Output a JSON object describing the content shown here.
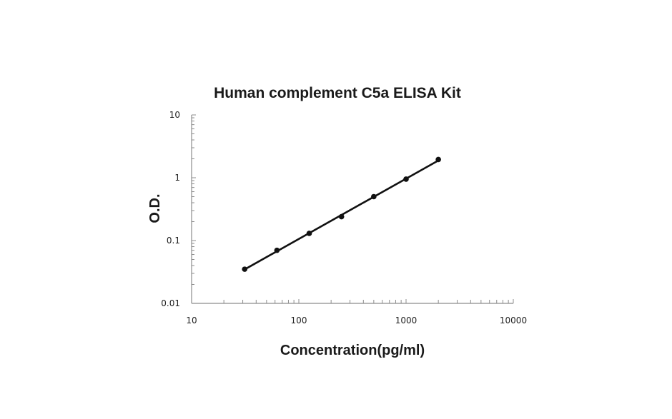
{
  "chart_data": {
    "type": "scatter",
    "title": "Human complement C5a ELISA Kit",
    "xlabel": "Concentration(pg/ml)",
    "ylabel": "O.D.",
    "x_scale": "log",
    "y_scale": "log",
    "xlim": [
      10,
      10000
    ],
    "ylim": [
      0.01,
      10
    ],
    "x_ticks": [
      10,
      100,
      1000,
      10000
    ],
    "x_tick_labels": [
      "10",
      "100",
      "1000",
      "10000"
    ],
    "y_ticks": [
      0.01,
      0.1,
      1,
      10
    ],
    "y_tick_labels": [
      "0.01",
      "0.1",
      "1",
      "10"
    ],
    "grid": false,
    "legend": "none",
    "series": [
      {
        "x": [
          31.25,
          62.5,
          125,
          250,
          500,
          1000,
          2000
        ],
        "y": [
          0.035,
          0.07,
          0.13,
          0.24,
          0.5,
          0.95,
          1.95
        ],
        "trendline": "power",
        "color": "#111111"
      }
    ]
  }
}
